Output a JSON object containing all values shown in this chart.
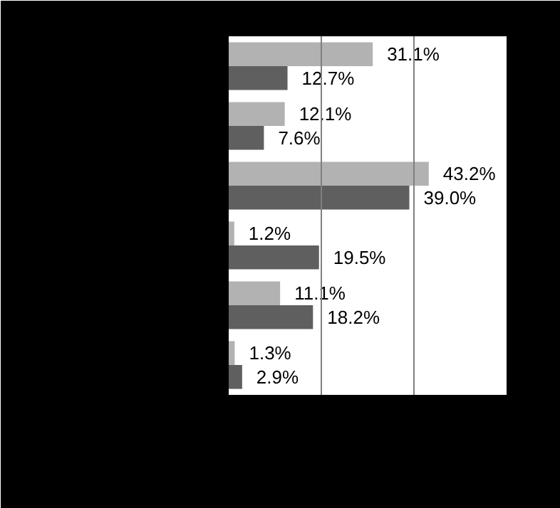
{
  "chart_data": {
    "type": "bar",
    "orientation": "horizontal",
    "categories": [
      null,
      null,
      null,
      null,
      null,
      null
    ],
    "series": [
      {
        "color": "#b2b2b2",
        "values": [
          31.1,
          12.1,
          43.2,
          1.2,
          11.1,
          1.3
        ],
        "value_labels": [
          "31.1%",
          "12.1%",
          "43.2%",
          "1.2%",
          "11.1%",
          "1.3%"
        ]
      },
      {
        "color": "#5f5f5f",
        "values": [
          12.7,
          7.6,
          39.0,
          19.5,
          18.2,
          2.9
        ],
        "value_labels": [
          "12.7%",
          "7.6%",
          "39.0%",
          "19.5%",
          "18.2%",
          "2.9%"
        ]
      }
    ],
    "ref_lines": [
      {
        "axis": "x",
        "value": 20,
        "color": "#808080"
      },
      {
        "axis": "x",
        "value": 40,
        "color": "#808080"
      }
    ],
    "tick_labels": false
  }
}
